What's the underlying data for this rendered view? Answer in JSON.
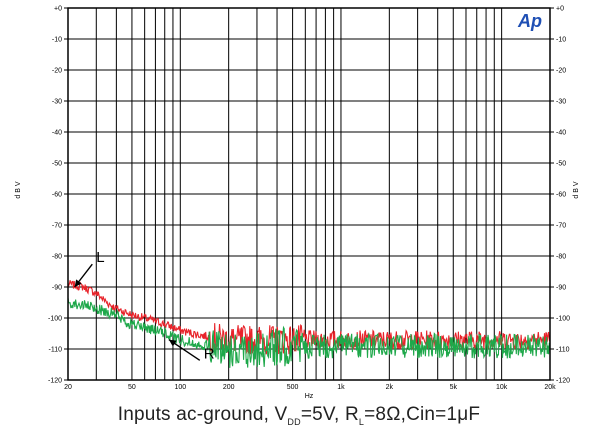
{
  "chart_data": {
    "type": "line",
    "title": "",
    "xlabel": "Hz",
    "ylabel": "d B V",
    "x_scale": "log",
    "xlim": [
      20,
      20000
    ],
    "ylim": [
      -120,
      0
    ],
    "grid": true,
    "x_ticks": [
      {
        "v": 20,
        "label": "20"
      },
      {
        "v": 50,
        "label": "50"
      },
      {
        "v": 100,
        "label": "100"
      },
      {
        "v": 200,
        "label": "200"
      },
      {
        "v": 500,
        "label": "500"
      },
      {
        "v": 1000,
        "label": "1k"
      },
      {
        "v": 2000,
        "label": "2k"
      },
      {
        "v": 5000,
        "label": "5k"
      },
      {
        "v": 10000,
        "label": "10k"
      },
      {
        "v": 20000,
        "label": "20k"
      }
    ],
    "y_ticks": [
      {
        "v": 0,
        "label": "+0"
      },
      {
        "v": -10,
        "label": "-10"
      },
      {
        "v": -20,
        "label": "-20"
      },
      {
        "v": -30,
        "label": "-30"
      },
      {
        "v": -40,
        "label": "-40"
      },
      {
        "v": -50,
        "label": "-50"
      },
      {
        "v": -60,
        "label": "-60"
      },
      {
        "v": -70,
        "label": "-70"
      },
      {
        "v": -80,
        "label": "-80"
      },
      {
        "v": -90,
        "label": "-90"
      },
      {
        "v": -100,
        "label": "-100"
      },
      {
        "v": -110,
        "label": "-110"
      },
      {
        "v": -120,
        "label": "-120"
      }
    ],
    "series": [
      {
        "name": "L",
        "color": "#e8232a",
        "x": [
          20,
          25,
          30,
          35,
          40,
          45,
          50,
          60,
          70,
          80,
          90,
          100,
          120,
          150,
          200,
          300,
          500,
          1000,
          2000,
          5000,
          10000,
          20000
        ],
        "y": [
          -89,
          -90,
          -92,
          -95,
          -97,
          -98,
          -99,
          -100,
          -101,
          -102,
          -103,
          -104,
          -105,
          -106,
          -107,
          -107,
          -107,
          -107,
          -107,
          -107,
          -107,
          -107
        ],
        "noise": 3
      },
      {
        "name": "R",
        "color": "#1ea84a",
        "x": [
          20,
          25,
          30,
          35,
          40,
          45,
          50,
          60,
          70,
          80,
          90,
          100,
          120,
          150,
          200,
          300,
          500,
          1000,
          2000,
          5000,
          10000,
          20000
        ],
        "y": [
          -95,
          -96,
          -97,
          -98,
          -99,
          -101,
          -102,
          -103,
          -104,
          -105,
          -106,
          -107,
          -108,
          -109,
          -110,
          -110,
          -109,
          -109,
          -109,
          -109,
          -109,
          -109
        ],
        "noise": 4
      }
    ],
    "annotations": [
      {
        "text": "L",
        "x": 30,
        "y": -82,
        "arrow_to": [
          22,
          -90
        ]
      },
      {
        "text": "R",
        "x": 140,
        "y": -113,
        "arrow_to": [
          85,
          -107
        ]
      }
    ],
    "caption": {
      "pre": "Inputs ac-ground, V",
      "sub1": "DD",
      "mid1": "=5V, R",
      "sub2": "L",
      "post": "=8Ω,Cin=1μF"
    },
    "logo": "Ap"
  }
}
